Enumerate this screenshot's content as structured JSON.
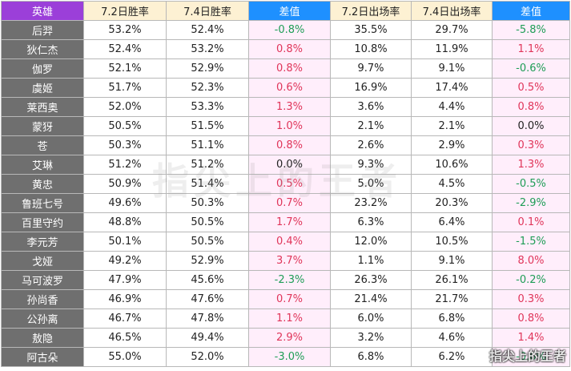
{
  "headers": [
    "英雄",
    "7.2日胜率",
    "7.4日胜率",
    "差值",
    "7.2日出场率",
    "7.4日出场率",
    "差值"
  ],
  "rows": [
    {
      "hero": "后羿",
      "wr72": "53.2%",
      "wr74": "52.4%",
      "wr_diff": "-0.8%",
      "pr72": "35.5%",
      "pr74": "29.7%",
      "pr_diff": "-5.8%"
    },
    {
      "hero": "狄仁杰",
      "wr72": "52.4%",
      "wr74": "53.2%",
      "wr_diff": "0.8%",
      "pr72": "10.8%",
      "pr74": "11.9%",
      "pr_diff": "1.1%"
    },
    {
      "hero": "伽罗",
      "wr72": "52.1%",
      "wr74": "52.9%",
      "wr_diff": "0.8%",
      "pr72": "9.7%",
      "pr74": "9.1%",
      "pr_diff": "-0.6%"
    },
    {
      "hero": "虞姬",
      "wr72": "51.7%",
      "wr74": "52.3%",
      "wr_diff": "0.6%",
      "pr72": "16.9%",
      "pr74": "17.4%",
      "pr_diff": "0.5%"
    },
    {
      "hero": "莱西奥",
      "wr72": "52.0%",
      "wr74": "53.3%",
      "wr_diff": "1.3%",
      "pr72": "3.6%",
      "pr74": "4.4%",
      "pr_diff": "0.8%"
    },
    {
      "hero": "蒙犽",
      "wr72": "50.5%",
      "wr74": "51.5%",
      "wr_diff": "1.0%",
      "pr72": "2.1%",
      "pr74": "2.1%",
      "pr_diff": "0.0%"
    },
    {
      "hero": "苍",
      "wr72": "50.3%",
      "wr74": "51.1%",
      "wr_diff": "0.8%",
      "pr72": "2.6%",
      "pr74": "2.9%",
      "pr_diff": "0.3%"
    },
    {
      "hero": "艾琳",
      "wr72": "51.2%",
      "wr74": "51.2%",
      "wr_diff": "0.0%",
      "pr72": "9.3%",
      "pr74": "10.6%",
      "pr_diff": "1.3%"
    },
    {
      "hero": "黄忠",
      "wr72": "50.9%",
      "wr74": "51.4%",
      "wr_diff": "0.5%",
      "pr72": "5.0%",
      "pr74": "4.5%",
      "pr_diff": "-0.5%"
    },
    {
      "hero": "鲁班七号",
      "wr72": "49.6%",
      "wr74": "50.3%",
      "wr_diff": "0.7%",
      "pr72": "23.2%",
      "pr74": "20.3%",
      "pr_diff": "-2.9%"
    },
    {
      "hero": "百里守约",
      "wr72": "48.8%",
      "wr74": "50.5%",
      "wr_diff": "1.7%",
      "pr72": "6.3%",
      "pr74": "6.4%",
      "pr_diff": "0.1%"
    },
    {
      "hero": "李元芳",
      "wr72": "50.1%",
      "wr74": "50.5%",
      "wr_diff": "0.4%",
      "pr72": "12.0%",
      "pr74": "10.5%",
      "pr_diff": "-1.5%"
    },
    {
      "hero": "戈娅",
      "wr72": "49.2%",
      "wr74": "52.9%",
      "wr_diff": "3.7%",
      "pr72": "1.1%",
      "pr74": "9.1%",
      "pr_diff": "8.0%"
    },
    {
      "hero": "马可波罗",
      "wr72": "47.9%",
      "wr74": "45.6%",
      "wr_diff": "-2.3%",
      "pr72": "26.3%",
      "pr74": "26.1%",
      "pr_diff": "-0.2%"
    },
    {
      "hero": "孙尚香",
      "wr72": "46.9%",
      "wr74": "47.6%",
      "wr_diff": "0.7%",
      "pr72": "21.4%",
      "pr74": "21.7%",
      "pr_diff": "0.3%"
    },
    {
      "hero": "公孙离",
      "wr72": "46.7%",
      "wr74": "47.8%",
      "wr_diff": "1.1%",
      "pr72": "6.0%",
      "pr74": "6.8%",
      "pr_diff": "0.8%"
    },
    {
      "hero": "敖隐",
      "wr72": "46.5%",
      "wr74": "49.4%",
      "wr_diff": "2.9%",
      "pr72": "3.2%",
      "pr74": "4.6%",
      "pr_diff": "1.4%"
    },
    {
      "hero": "阿古朵",
      "wr72": "55.0%",
      "wr74": "52.0%",
      "wr_diff": "-3.0%",
      "pr72": "6.8%",
      "pr74": "6.2%",
      "pr_diff": "-0.6%"
    }
  ],
  "colors": {
    "hero_header": "#9b3fd9",
    "diff_header": "#1e90ff",
    "rate_header": "#fdf1d3",
    "hero_cell": "#6f6f6f",
    "diff_cell": "#ffeefb",
    "positive": "#e0355a",
    "negative": "#1e9d56"
  },
  "watermark": "指尖上的王者",
  "corner_watermark": "指尖上的王者"
}
